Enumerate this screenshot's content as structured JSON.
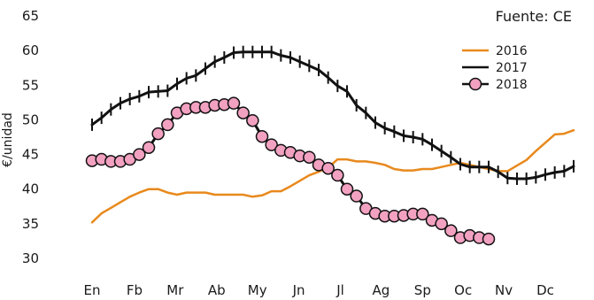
{
  "chart_data": {
    "type": "line",
    "source_note": "Fuente: CE",
    "ylabel": "€/unidad",
    "ylim": [
      30,
      65
    ],
    "yticks": [
      30,
      35,
      40,
      45,
      50,
      55,
      60,
      65
    ],
    "xlim": [
      1,
      52
    ],
    "month_labels": [
      "En",
      "Fb",
      "Mr",
      "Ab",
      "My",
      "Jn",
      "Jl",
      "Ag",
      "Sp",
      "Oc",
      "Nv",
      "Dc"
    ],
    "month_weeks": [
      1,
      5.5,
      9.8,
      14.2,
      18.5,
      22.9,
      27.3,
      31.6,
      36,
      40.3,
      44.6,
      49
    ],
    "grid": false,
    "legend_position": "top-right",
    "series": [
      {
        "name": "2016",
        "color": "#e8891d",
        "marker": "none",
        "x": [
          1,
          2,
          3,
          4,
          5,
          6,
          7,
          8,
          9,
          10,
          11,
          12,
          13,
          14,
          15,
          16,
          17,
          18,
          19,
          20,
          21,
          22,
          23,
          24,
          25,
          26,
          27,
          28,
          29,
          30,
          31,
          32,
          33,
          34,
          35,
          36,
          37,
          38,
          39,
          40,
          41,
          42,
          43,
          44,
          45,
          46,
          47,
          48,
          49,
          50,
          51,
          52
        ],
        "values": [
          35.2,
          36.5,
          37.3,
          38.1,
          38.9,
          39.5,
          40.0,
          40.0,
          39.5,
          39.2,
          39.5,
          39.5,
          39.5,
          39.2,
          39.2,
          39.2,
          39.2,
          38.9,
          39.1,
          39.7,
          39.7,
          40.4,
          41.2,
          42.0,
          42.5,
          43.1,
          44.3,
          44.3,
          44.0,
          44.0,
          43.8,
          43.5,
          42.9,
          42.7,
          42.7,
          42.9,
          42.9,
          43.2,
          43.5,
          43.8,
          43.5,
          43.2,
          42.9,
          42.6,
          42.6,
          43.4,
          44.2,
          45.5,
          46.7,
          47.9,
          48.0,
          48.5
        ]
      },
      {
        "name": "2017",
        "color": "#111111",
        "marker": "tick",
        "x": [
          1,
          2,
          3,
          4,
          5,
          6,
          7,
          8,
          9,
          10,
          11,
          12,
          13,
          14,
          15,
          16,
          17,
          18,
          19,
          20,
          21,
          22,
          23,
          24,
          25,
          26,
          27,
          28,
          29,
          30,
          31,
          32,
          33,
          34,
          35,
          36,
          37,
          38,
          39,
          40,
          41,
          42,
          43,
          44,
          45,
          46,
          47,
          48,
          49,
          50,
          51,
          52
        ],
        "values": [
          49.3,
          50.3,
          51.5,
          52.4,
          53.0,
          53.4,
          54.0,
          54.1,
          54.2,
          55.2,
          56.0,
          56.4,
          57.4,
          58.4,
          59.0,
          59.7,
          59.8,
          59.8,
          59.8,
          59.8,
          59.3,
          59.0,
          58.4,
          57.8,
          57.2,
          56.1,
          54.9,
          54.1,
          52.1,
          51.0,
          49.6,
          48.8,
          48.3,
          47.7,
          47.5,
          47.2,
          46.4,
          45.5,
          44.6,
          43.6,
          43.2,
          43.2,
          43.2,
          42.5,
          41.6,
          41.5,
          41.5,
          41.7,
          42.1,
          42.4,
          42.6,
          43.3
        ]
      },
      {
        "name": "2018",
        "color": "#111111",
        "marker": "circle",
        "marker_fill": "#f2a1c1",
        "x": [
          1,
          2,
          3,
          4,
          5,
          6,
          7,
          8,
          9,
          10,
          11,
          12,
          13,
          14,
          15,
          16,
          17,
          18,
          19,
          20,
          21,
          22,
          23,
          24,
          25,
          26,
          27,
          28,
          29,
          30,
          31,
          32,
          33,
          34,
          35,
          36,
          37,
          38,
          39,
          40,
          41,
          42,
          43
        ],
        "values": [
          44.1,
          44.3,
          44.0,
          44.0,
          44.3,
          45.0,
          46.0,
          48.0,
          49.3,
          51.0,
          51.6,
          51.8,
          51.8,
          52.1,
          52.2,
          52.4,
          51.0,
          49.9,
          47.6,
          46.4,
          45.6,
          45.3,
          44.8,
          44.6,
          43.5,
          43.0,
          42.0,
          40.0,
          39.0,
          37.2,
          36.5,
          36.1,
          36.1,
          36.2,
          36.4,
          36.4,
          35.5,
          35.0,
          34.0,
          33.0,
          33.3,
          33.0,
          32.8
        ]
      }
    ]
  }
}
